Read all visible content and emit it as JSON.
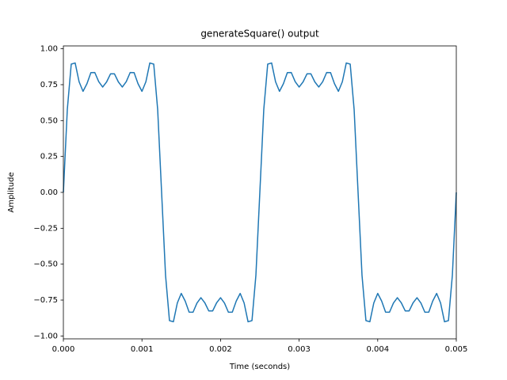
{
  "chart_data": {
    "type": "line",
    "title": "generateSquare() output",
    "x_label": "Time (seconds)",
    "y_label": "Amplitude",
    "x": [
      0,
      5e-05,
      0.0001,
      0.00015,
      0.0002,
      0.00025,
      0.0003,
      0.00035,
      0.0004,
      0.00045,
      0.0005,
      0.00055,
      0.0006,
      0.00065,
      0.0007,
      0.00075,
      0.0008,
      0.00085,
      0.0009,
      0.00095,
      0.001,
      0.00105,
      0.0011,
      0.00115,
      0.0012,
      0.00125,
      0.0013,
      0.00135,
      0.0014,
      0.00145,
      0.0015,
      0.00155,
      0.0016,
      0.00165,
      0.0017,
      0.00175,
      0.0018,
      0.00185,
      0.0019,
      0.00195,
      0.002,
      0.00205,
      0.0021,
      0.00215,
      0.0022,
      0.00225,
      0.0023,
      0.00235,
      0.0024,
      0.00245,
      0.0025,
      0.00255,
      0.0026,
      0.00265,
      0.0027,
      0.00275,
      0.0028,
      0.00285,
      0.0029,
      0.00295,
      0.003,
      0.00305,
      0.0031,
      0.00315,
      0.0032,
      0.00325,
      0.0033,
      0.00335,
      0.0034,
      0.00345,
      0.0035,
      0.00355,
      0.0036,
      0.00365,
      0.0037,
      0.00375,
      0.0038,
      0.00385,
      0.0039,
      0.00395,
      0.004,
      0.00405,
      0.0041,
      0.00415,
      0.0042,
      0.00425,
      0.0043,
      0.00435,
      0.0044,
      0.00445,
      0.0045,
      0.00455,
      0.0046,
      0.00465,
      0.0047,
      0.00475,
      0.0048,
      0.00485,
      0.0049,
      0.00495,
      0.005
    ],
    "values": [
      0,
      0.5762,
      0.893,
      0.9011,
      0.7704,
      0.7036,
      0.7566,
      0.8339,
      0.8346,
      0.7708,
      0.7335,
      0.7691,
      0.8253,
      0.8253,
      0.7691,
      0.7335,
      0.7708,
      0.8346,
      0.8339,
      0.7566,
      0.7036,
      0.7704,
      0.9011,
      0.893,
      0.5762,
      0,
      -0.5762,
      -0.893,
      -0.9011,
      -0.7704,
      -0.7036,
      -0.7566,
      -0.8339,
      -0.8346,
      -0.7708,
      -0.7335,
      -0.7691,
      -0.8253,
      -0.8253,
      -0.7691,
      -0.7335,
      -0.7708,
      -0.8346,
      -0.8339,
      -0.7566,
      -0.7036,
      -0.7704,
      -0.9011,
      -0.893,
      -0.5762,
      0,
      0.5762,
      0.893,
      0.9011,
      0.7704,
      0.7036,
      0.7566,
      0.8339,
      0.8346,
      0.7708,
      0.7335,
      0.7691,
      0.8253,
      0.8253,
      0.7691,
      0.7335,
      0.7708,
      0.8346,
      0.8339,
      0.7566,
      0.7036,
      0.7704,
      0.9011,
      0.893,
      0.5762,
      0,
      -0.5762,
      -0.893,
      -0.9011,
      -0.7704,
      -0.7036,
      -0.7566,
      -0.8339,
      -0.8346,
      -0.7708,
      -0.7335,
      -0.7691,
      -0.8253,
      -0.8253,
      -0.7691,
      -0.7335,
      -0.7708,
      -0.8346,
      -0.8339,
      -0.7566,
      -0.7036,
      -0.7704,
      -0.9011,
      -0.893,
      -0.5762,
      0
    ],
    "color": "#1f77b4",
    "xlim": [
      0,
      0.005
    ],
    "ylim": [
      -1.02,
      1.02
    ],
    "xticks": [
      {
        "value": 0,
        "label": "0.000"
      },
      {
        "value": 0.001,
        "label": "0.001"
      },
      {
        "value": 0.002,
        "label": "0.002"
      },
      {
        "value": 0.003,
        "label": "0.003"
      },
      {
        "value": 0.004,
        "label": "0.004"
      },
      {
        "value": 0.005,
        "label": "0.005"
      }
    ],
    "yticks": [
      {
        "value": -1,
        "label": "−1.00"
      },
      {
        "value": -0.75,
        "label": "−0.75"
      },
      {
        "value": -0.5,
        "label": "−0.50"
      },
      {
        "value": -0.25,
        "label": "−0.25"
      },
      {
        "value": 0,
        "label": "0.00"
      },
      {
        "value": 0.25,
        "label": "0.25"
      },
      {
        "value": 0.5,
        "label": "0.50"
      },
      {
        "value": 0.75,
        "label": "0.75"
      },
      {
        "value": 1,
        "label": "1.00"
      }
    ],
    "grid": false
  }
}
